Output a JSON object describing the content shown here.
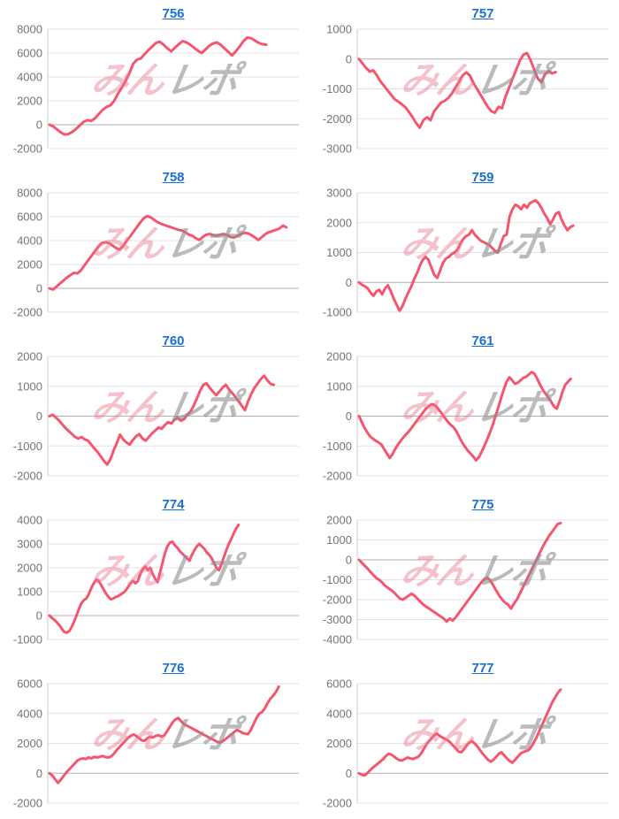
{
  "page": {
    "background": "#ffffff"
  },
  "watermark": {
    "pink_text": "みん",
    "gray_text": "レポ"
  },
  "styles": {
    "line_color": "#f4566f",
    "title_color": "#1a6fd4",
    "tick_color": "#757575",
    "grid_color": "#e3e3e3",
    "zero_line_color": "#b0b0b0",
    "axis_line_color": "#cccccc",
    "watermark_pink": "#eb7a8e",
    "watermark_gray": "#8f8f8f"
  },
  "chart_data": [
    {
      "type": "line",
      "title": "756",
      "ylim": [
        -2000,
        8000
      ],
      "yticks": [
        8000,
        6000,
        4000,
        2000,
        0,
        -2000
      ],
      "x_end_frac": 0.87,
      "values": [
        0,
        -150,
        -400,
        -650,
        -820,
        -780,
        -600,
        -350,
        -50,
        250,
        380,
        320,
        550,
        900,
        1250,
        1500,
        1620,
        2000,
        2600,
        3100,
        3650,
        4300,
        5100,
        5450,
        5550,
        5900,
        6250,
        6550,
        6850,
        6950,
        6700,
        6400,
        6150,
        6450,
        6750,
        7000,
        6900,
        6700,
        6450,
        6200,
        6000,
        6300,
        6600,
        6800,
        6900,
        6700,
        6400,
        6100,
        5800,
        6150,
        6550,
        7000,
        7300,
        7250,
        7050,
        6850,
        6750,
        6700
      ]
    },
    {
      "type": "line",
      "title": "757",
      "ylim": [
        -3000,
        1000
      ],
      "yticks": [
        1000,
        0,
        -1000,
        -2000,
        -3000
      ],
      "x_end_frac": 0.79,
      "values": [
        0,
        -150,
        -300,
        -420,
        -380,
        -550,
        -750,
        -900,
        -1050,
        -1200,
        -1350,
        -1430,
        -1520,
        -1620,
        -1780,
        -1950,
        -2150,
        -2300,
        -2050,
        -1950,
        -2050,
        -1750,
        -1600,
        -1450,
        -1400,
        -1300,
        -1150,
        -950,
        -750,
        -550,
        -450,
        -550,
        -800,
        -1000,
        -1200,
        -1400,
        -1600,
        -1750,
        -1800,
        -1600,
        -1650,
        -1250,
        -950,
        -650,
        -350,
        -50,
        150,
        200,
        -50,
        -350,
        -650,
        -780,
        -520,
        -400,
        -480,
        -440
      ]
    },
    {
      "type": "line",
      "title": "758",
      "ylim": [
        -2000,
        8000
      ],
      "yticks": [
        8000,
        6000,
        4000,
        2000,
        0,
        -2000
      ],
      "x_end_frac": 0.95,
      "values": [
        0,
        -100,
        150,
        400,
        650,
        900,
        1100,
        1300,
        1250,
        1500,
        1900,
        2300,
        2700,
        3100,
        3500,
        3800,
        3850,
        3800,
        3600,
        3400,
        3250,
        3500,
        3900,
        4300,
        4700,
        5100,
        5500,
        5850,
        6050,
        5950,
        5750,
        5550,
        5400,
        5300,
        5200,
        5100,
        5000,
        4900,
        4850,
        4700,
        4500,
        4400,
        4200,
        4050,
        4300,
        4500,
        4550,
        4450,
        4400,
        4500,
        4550,
        4450,
        4300,
        4250,
        4400,
        4550,
        4650,
        4600,
        4450,
        4250,
        4050,
        4300,
        4550,
        4700,
        4800,
        4900,
        5000,
        5250,
        5100
      ]
    },
    {
      "type": "line",
      "title": "759",
      "ylim": [
        -1000,
        3000
      ],
      "yticks": [
        3000,
        2000,
        1000,
        0,
        -1000
      ],
      "x_end_frac": 0.86,
      "values": [
        0,
        -80,
        -130,
        -200,
        -350,
        -450,
        -300,
        -250,
        -400,
        -200,
        -100,
        -300,
        -550,
        -750,
        -950,
        -800,
        -550,
        -350,
        -150,
        100,
        300,
        550,
        750,
        850,
        750,
        500,
        250,
        150,
        400,
        650,
        800,
        850,
        950,
        1000,
        1100,
        1300,
        1450,
        1550,
        1600,
        1750,
        1600,
        1500,
        1400,
        1350,
        1300,
        1250,
        1150,
        1050,
        1000,
        1300,
        1550,
        1600,
        2200,
        2450,
        2600,
        2550,
        2450,
        2600,
        2500,
        2650,
        2700,
        2750,
        2650,
        2500,
        2300,
        2150,
        1950,
        2100,
        2300,
        2350,
        2100,
        1900,
        1750,
        1850,
        1900
      ]
    },
    {
      "type": "line",
      "title": "760",
      "ylim": [
        -2000,
        2000
      ],
      "yticks": [
        2000,
        1000,
        0,
        -1000,
        -2000
      ],
      "x_end_frac": 0.9,
      "values": [
        0,
        50,
        -50,
        -150,
        -280,
        -400,
        -500,
        -600,
        -700,
        -750,
        -700,
        -780,
        -820,
        -950,
        -1080,
        -1200,
        -1350,
        -1500,
        -1620,
        -1450,
        -1150,
        -900,
        -620,
        -780,
        -880,
        -950,
        -800,
        -680,
        -600,
        -750,
        -820,
        -700,
        -580,
        -480,
        -380,
        -420,
        -300,
        -200,
        -250,
        -120,
        -50,
        -150,
        -100,
        50,
        150,
        350,
        600,
        850,
        1050,
        1100,
        950,
        820,
        700,
        820,
        950,
        1050,
        900,
        780,
        650,
        500,
        350,
        200,
        500,
        750,
        950,
        1100,
        1250,
        1350,
        1200,
        1080,
        1050
      ]
    },
    {
      "type": "line",
      "title": "761",
      "ylim": [
        -2000,
        2000
      ],
      "yticks": [
        2000,
        1000,
        0,
        -1000,
        -2000
      ],
      "x_end_frac": 0.85,
      "values": [
        0,
        -200,
        -400,
        -550,
        -680,
        -760,
        -820,
        -880,
        -950,
        -1100,
        -1250,
        -1400,
        -1280,
        -1100,
        -950,
        -820,
        -700,
        -600,
        -500,
        -380,
        -250,
        -120,
        0,
        120,
        250,
        330,
        400,
        380,
        300,
        180,
        50,
        -80,
        -200,
        -300,
        -380,
        -520,
        -700,
        -880,
        -1020,
        -1150,
        -1250,
        -1350,
        -1480,
        -1380,
        -1200,
        -1000,
        -780,
        -550,
        -300,
        0,
        300,
        600,
        900,
        1150,
        1300,
        1200,
        1080,
        1120,
        1200,
        1280,
        1320,
        1400,
        1480,
        1420,
        1250,
        1050,
        880,
        750,
        620,
        480,
        320,
        250,
        500,
        800,
        1050,
        1150,
        1250
      ]
    },
    {
      "type": "line",
      "title": "774",
      "ylim": [
        -1000,
        4000
      ],
      "yticks": [
        4000,
        3000,
        2000,
        1000,
        0,
        -1000
      ],
      "x_end_frac": 0.76,
      "values": [
        0,
        -100,
        -180,
        -280,
        -400,
        -550,
        -680,
        -720,
        -650,
        -480,
        -250,
        0,
        280,
        520,
        650,
        720,
        900,
        1150,
        1350,
        1500,
        1450,
        1280,
        1100,
        920,
        780,
        680,
        720,
        780,
        820,
        880,
        950,
        1050,
        1200,
        1350,
        1450,
        1350,
        1450,
        1750,
        1950,
        2050,
        1900,
        2000,
        1750,
        1550,
        1400,
        1800,
        2200,
        2600,
        2900,
        3050,
        3100,
        2950,
        2850,
        2700,
        2600,
        2500,
        2400,
        2300,
        2550,
        2750,
        2900,
        3000,
        2900,
        2800,
        2650,
        2550,
        2400,
        2200,
        2000,
        1900,
        2150,
        2450,
        2750,
        3000,
        3200,
        3450,
        3650,
        3800
      ]
    },
    {
      "type": "line",
      "title": "775",
      "ylim": [
        -4000,
        2000
      ],
      "yticks": [
        2000,
        1000,
        0,
        -1000,
        -2000,
        -3000,
        -4000
      ],
      "x_end_frac": 0.81,
      "values": [
        0,
        -150,
        -300,
        -450,
        -620,
        -780,
        -920,
        -1020,
        -1150,
        -1300,
        -1420,
        -1520,
        -1650,
        -1800,
        -1950,
        -2000,
        -1900,
        -1800,
        -1700,
        -1800,
        -1950,
        -2100,
        -2250,
        -2350,
        -2450,
        -2550,
        -2650,
        -2750,
        -2850,
        -2950,
        -3100,
        -2950,
        -3050,
        -2900,
        -2700,
        -2500,
        -2300,
        -2100,
        -1900,
        -1700,
        -1500,
        -1300,
        -1100,
        -950,
        -900,
        -1050,
        -1300,
        -1550,
        -1800,
        -2000,
        -2150,
        -2250,
        -2450,
        -2200,
        -2000,
        -1700,
        -1400,
        -1100,
        -800,
        -500,
        -200,
        100,
        400,
        700,
        950,
        1200,
        1400,
        1600,
        1800,
        1850
      ]
    },
    {
      "type": "line",
      "title": "776",
      "ylim": [
        -2000,
        6000
      ],
      "yticks": [
        6000,
        4000,
        2000,
        0,
        -2000
      ],
      "x_end_frac": 0.92,
      "values": [
        0,
        -150,
        -400,
        -650,
        -450,
        -200,
        50,
        250,
        450,
        650,
        850,
        950,
        1000,
        950,
        1050,
        1000,
        1100,
        1050,
        1100,
        1150,
        1080,
        1050,
        1120,
        1300,
        1550,
        1750,
        1950,
        2150,
        2350,
        2500,
        2600,
        2500,
        2350,
        2200,
        2180,
        2350,
        2450,
        2400,
        2500,
        2550,
        2450,
        2520,
        2800,
        3100,
        3400,
        3600,
        3700,
        3500,
        3300,
        3200,
        3100,
        3000,
        2900,
        2800,
        2700,
        2600,
        2500,
        2400,
        2300,
        2200,
        2100,
        2050,
        2150,
        2300,
        2450,
        2600,
        2750,
        2900,
        2820,
        2700,
        2650,
        2620,
        2900,
        3300,
        3700,
        4000,
        4100,
        4350,
        4700,
        5000,
        5200,
        5450,
        5800
      ]
    },
    {
      "type": "line",
      "title": "777",
      "ylim": [
        -2000,
        6000
      ],
      "yticks": [
        6000,
        4000,
        2000,
        0,
        -2000
      ],
      "x_end_frac": 0.81,
      "values": [
        0,
        -100,
        -150,
        0,
        180,
        350,
        500,
        650,
        800,
        950,
        1150,
        1300,
        1250,
        1120,
        980,
        880,
        850,
        950,
        1050,
        1000,
        950,
        1020,
        1100,
        1300,
        1600,
        1900,
        2150,
        2350,
        2550,
        2650,
        2500,
        2400,
        2300,
        2200,
        2050,
        1850,
        1650,
        1450,
        1400,
        1600,
        1850,
        2050,
        2150,
        2000,
        1800,
        1550,
        1300,
        1100,
        900,
        780,
        900,
        1100,
        1300,
        1400,
        1200,
        1000,
        820,
        700,
        900,
        1100,
        1300,
        1420,
        1480,
        1550,
        1750,
        2050,
        2400,
        2800,
        3200,
        3600,
        4000,
        4400,
        4800,
        5100,
        5400,
        5600
      ]
    }
  ]
}
